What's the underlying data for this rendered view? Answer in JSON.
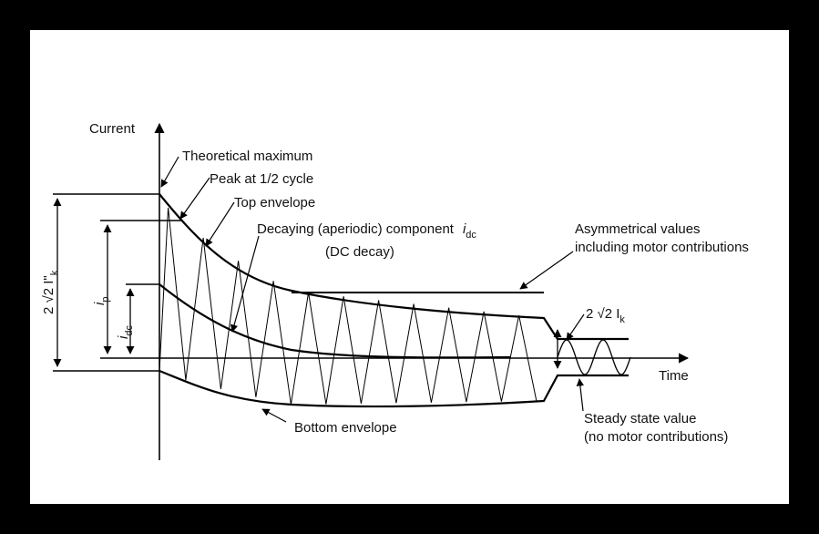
{
  "axes": {
    "y_label": "Current",
    "x_label": "Time"
  },
  "callouts": {
    "theoretical_maximum": "Theoretical maximum",
    "peak_half_cycle": "Peak at 1/2 cycle",
    "top_envelope": "Top envelope",
    "decaying_line1": "Decaying (aperiodic) component",
    "decaying_symbol": "i",
    "decaying_symbol_sub": "dc",
    "decaying_line2": "(DC decay)",
    "asymmetrical_line1": "Asymmetrical values",
    "asymmetrical_line2": "including motor contributions",
    "bottom_envelope": "Bottom envelope",
    "steady_line1": "Steady state value",
    "steady_line2": "(no motor contributions)"
  },
  "dimensions": {
    "ikpp": {
      "prefix": "2 √2 I",
      "suffix": "\"",
      "sub": "k"
    },
    "ip": {
      "main": "i",
      "sub": "p"
    },
    "idc": {
      "main": "i",
      "sub": "dc"
    },
    "ik": {
      "prefix": "2 √2 I",
      "sub": "k"
    }
  },
  "colors": {
    "frame": "#000000",
    "background": "#ffffff",
    "ink": "#000000"
  }
}
